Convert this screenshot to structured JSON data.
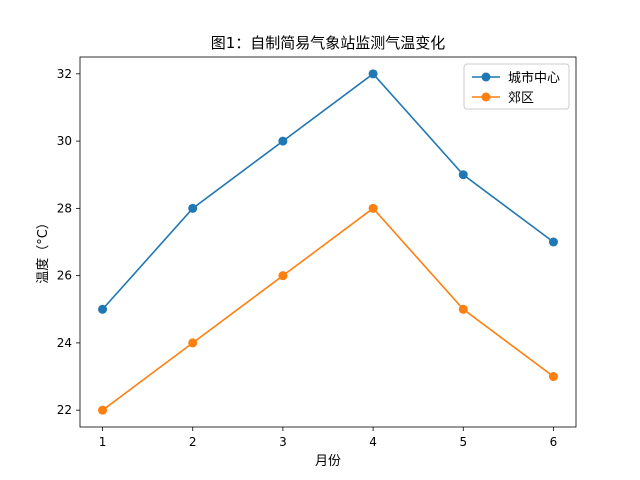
{
  "chart_data": {
    "type": "line",
    "title": "图1：自制简易气象站监测气温变化",
    "xlabel": "月份",
    "ylabel": "温度（°C）",
    "x": [
      1,
      2,
      3,
      4,
      5,
      6
    ],
    "xlim": [
      0.75,
      6.25
    ],
    "ylim": [
      21.5,
      32.5
    ],
    "yticks": [
      22,
      24,
      26,
      28,
      30,
      32
    ],
    "grid": false,
    "legend_position": "top-right",
    "series": [
      {
        "name": "城市中心",
        "color": "#1f77b4",
        "values": [
          25,
          28,
          30,
          32,
          29,
          27
        ]
      },
      {
        "name": "郊区",
        "color": "#ff7f0e",
        "values": [
          22,
          24,
          26,
          28,
          25,
          23
        ]
      }
    ]
  }
}
